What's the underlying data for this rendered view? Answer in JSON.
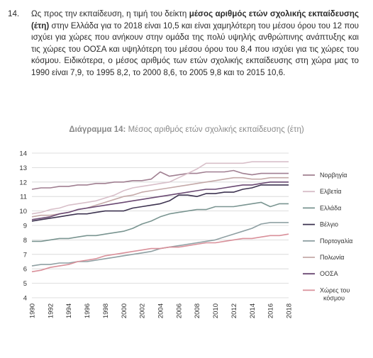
{
  "paragraph": {
    "number": "14.",
    "pre": "Ως προς την εκπαίδευση, η τιμή του δείκτη ",
    "bold": "μέσος αριθμός ετών σχολικής εκπαίδευσης (έτη)",
    "post": " στην Ελλάδα για το 2018 είναι 10,5 και είναι χαμηλότερη του μέσου όρου του 12 που ισχύει για χώρες που ανήκουν στην ομάδα της πολύ υψηλής ανθρώπινης ανάπτυξης και τις χώρες του ΟΟΣΑ και υψηλότερη του μέσου όρου του 8,4 που ισχύει για τις χώρες του κόσμου. Ειδικότερα, ο μέσος αριθμός των ετών σχολικής εκπαίδευσης στη χώρα μας το 1990 είναι 7,9, το 1995 8,2, το 2000 8,6, το 2005 9,8 και το 2015 10,6."
  },
  "caption": {
    "label": "Διάγραμμα 14:",
    "text": " Μέσος αριθμός ετών σχολικής εκπαίδευσης (έτη)"
  },
  "chart_data": {
    "type": "line",
    "title": "Μέσος αριθμός ετών σχολικής εκπαίδευσης (έτη)",
    "xlabel": "",
    "ylabel": "",
    "x": [
      1990,
      1991,
      1992,
      1993,
      1994,
      1995,
      1996,
      1997,
      1998,
      1999,
      2000,
      2001,
      2002,
      2003,
      2004,
      2005,
      2006,
      2007,
      2008,
      2009,
      2010,
      2011,
      2012,
      2013,
      2014,
      2015,
      2016,
      2017,
      2018
    ],
    "x_ticks": [
      "1990",
      "1992",
      "1994",
      "1996",
      "1998",
      "2000",
      "2002",
      "2004",
      "2006",
      "2008",
      "2010",
      "2012",
      "2014",
      "2016",
      "2018"
    ],
    "y_ticks": [
      "4",
      "5",
      "6",
      "7",
      "8",
      "9",
      "10",
      "11",
      "12",
      "13",
      "14"
    ],
    "ylim": [
      4,
      14
    ],
    "grid": true,
    "legend_position": "right",
    "series": [
      {
        "name": "Νορβηγία",
        "color": "#a07f91",
        "values": [
          11.5,
          11.6,
          11.6,
          11.7,
          11.7,
          11.8,
          11.8,
          11.9,
          11.9,
          12.0,
          12.0,
          12.1,
          12.1,
          12.2,
          12.7,
          12.4,
          12.5,
          12.6,
          12.6,
          12.7,
          12.7,
          12.7,
          12.8,
          12.6,
          12.5,
          12.6,
          12.6,
          12.6,
          12.6
        ]
      },
      {
        "name": "Ελβετία",
        "color": "#d8bfc9",
        "values": [
          9.8,
          9.9,
          10.1,
          10.2,
          10.4,
          10.5,
          10.6,
          10.7,
          10.9,
          11.1,
          11.4,
          11.6,
          11.7,
          11.8,
          11.9,
          12.0,
          12.3,
          12.6,
          12.9,
          13.3,
          13.3,
          13.3,
          13.3,
          13.3,
          13.4,
          13.4,
          13.4,
          13.4,
          13.4
        ]
      },
      {
        "name": "Ελλάδα",
        "color": "#7a9591",
        "values": [
          7.9,
          7.9,
          8.0,
          8.1,
          8.1,
          8.2,
          8.3,
          8.3,
          8.4,
          8.5,
          8.6,
          8.8,
          9.1,
          9.3,
          9.6,
          9.8,
          9.9,
          10.0,
          10.1,
          10.1,
          10.3,
          10.3,
          10.3,
          10.4,
          10.5,
          10.6,
          10.3,
          10.5,
          10.5
        ]
      },
      {
        "name": "Βέλγιο",
        "color": "#3d3350",
        "values": [
          9.3,
          9.4,
          9.5,
          9.6,
          9.7,
          9.8,
          9.8,
          9.9,
          10.0,
          10.0,
          10.0,
          10.2,
          10.3,
          10.4,
          10.5,
          10.7,
          11.1,
          11.1,
          11.0,
          11.2,
          11.2,
          11.3,
          11.3,
          11.5,
          11.6,
          11.8,
          11.8,
          11.8,
          11.8
        ]
      },
      {
        "name": "Πορτογαλία",
        "color": "#8fa0a3",
        "values": [
          6.2,
          6.3,
          6.3,
          6.4,
          6.4,
          6.5,
          6.5,
          6.6,
          6.7,
          6.8,
          6.9,
          7.0,
          7.1,
          7.2,
          7.4,
          7.5,
          7.6,
          7.7,
          7.8,
          7.9,
          8.0,
          8.2,
          8.4,
          8.6,
          8.8,
          9.1,
          9.2,
          9.2,
          9.2
        ]
      },
      {
        "name": "Πολωνία",
        "color": "#c4a9a8",
        "values": [
          9.6,
          9.7,
          9.7,
          9.8,
          9.9,
          10.1,
          10.2,
          10.4,
          10.6,
          10.8,
          11.0,
          11.1,
          11.3,
          11.4,
          11.5,
          11.6,
          11.7,
          11.8,
          11.9,
          12.0,
          12.1,
          12.2,
          12.3,
          12.3,
          12.2,
          12.2,
          12.3,
          12.3,
          12.3
        ]
      },
      {
        "name": "ΟΟΣΑ",
        "color": "#6b4a73",
        "values": [
          9.4,
          9.5,
          9.6,
          9.8,
          9.9,
          10.1,
          10.2,
          10.3,
          10.4,
          10.5,
          10.6,
          10.7,
          10.8,
          10.9,
          11.0,
          11.1,
          11.2,
          11.3,
          11.4,
          11.5,
          11.5,
          11.6,
          11.7,
          11.8,
          11.8,
          11.9,
          12.0,
          12.0,
          12.0
        ]
      },
      {
        "name": "Χώρες του κόσμου",
        "color": "#d9909a",
        "values": [
          5.8,
          5.9,
          6.1,
          6.2,
          6.3,
          6.5,
          6.6,
          6.7,
          6.9,
          7.0,
          7.1,
          7.2,
          7.3,
          7.4,
          7.4,
          7.5,
          7.5,
          7.6,
          7.7,
          7.8,
          7.8,
          7.9,
          8.0,
          8.1,
          8.1,
          8.2,
          8.3,
          8.3,
          8.4
        ]
      }
    ]
  }
}
